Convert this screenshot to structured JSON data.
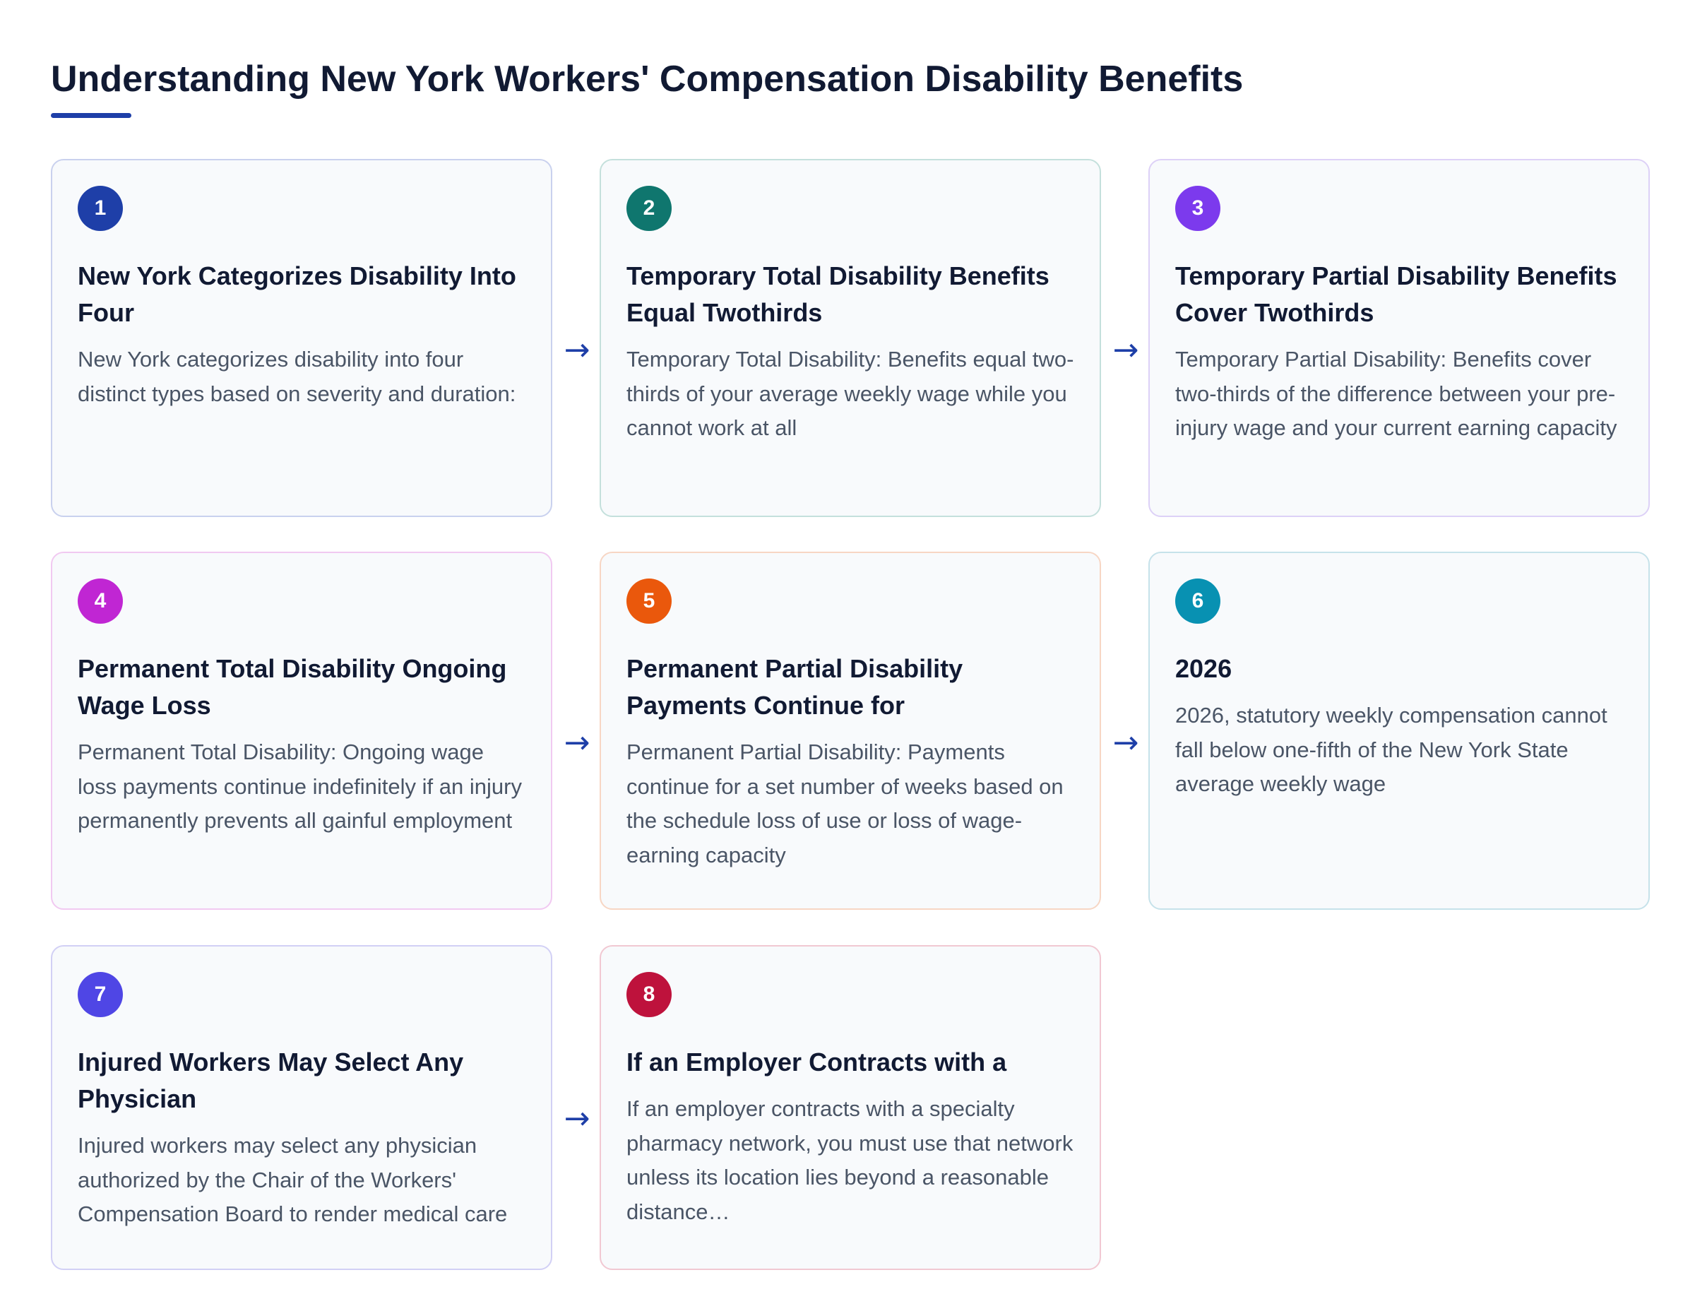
{
  "title": "Understanding New York Workers' Compensation Disability Benefits",
  "arrow_glyph": "→",
  "steps": [
    {
      "number": "1",
      "color": "#1e3fa8",
      "border": "#c9d1ee",
      "title": "New York Categorizes Disability Into Four",
      "text": "New York categorizes disability into four distinct types based on severity and duration:"
    },
    {
      "number": "2",
      "color": "#0f766e",
      "border": "#c4e0dc",
      "title": "Temporary Total Disability Benefits Equal Twothirds",
      "text": "Temporary Total Disability: Benefits equal two-thirds of your average weekly wage while you cannot work at all"
    },
    {
      "number": "3",
      "color": "#7c3aed",
      "border": "#ddd1f7",
      "title": "Temporary Partial Disability Benefits Cover Twothirds",
      "text": "Temporary Partial Disability: Benefits cover two-thirds of the difference between your pre-injury wage and your current earning capacity"
    },
    {
      "number": "4",
      "color": "#c026d3",
      "border": "#f1c9f1",
      "title": "Permanent Total Disability Ongoing Wage Loss",
      "text": "Permanent Total Disability: Ongoing wage loss payments continue indefinitely if an injury permanently prevents all gainful employment"
    },
    {
      "number": "5",
      "color": "#ea580c",
      "border": "#f7d6c4",
      "title": "Permanent Partial Disability Payments Continue for",
      "text": "Permanent Partial Disability: Payments continue for a set number of weeks based on the schedule loss of use or loss of wage-earning capacity"
    },
    {
      "number": "6",
      "color": "#0891b2",
      "border": "#c6e2ea",
      "title": "2026",
      "text": "2026, statutory weekly compensation cannot fall below one-fifth of the New York State average weekly wage"
    },
    {
      "number": "7",
      "color": "#4f46e5",
      "border": "#d2d0f5",
      "title": "Injured Workers May Select Any Physician",
      "text": "Injured workers may select any physician authorized by the Chair of the Workers' Compensation Board to render medical care"
    },
    {
      "number": "8",
      "color": "#be123c",
      "border": "#f1c8d2",
      "title": "If an Employer Contracts with a",
      "text": "If an employer contracts with a specialty pharmacy network, you must use that network unless its location lies beyond a reasonable distance…"
    }
  ]
}
